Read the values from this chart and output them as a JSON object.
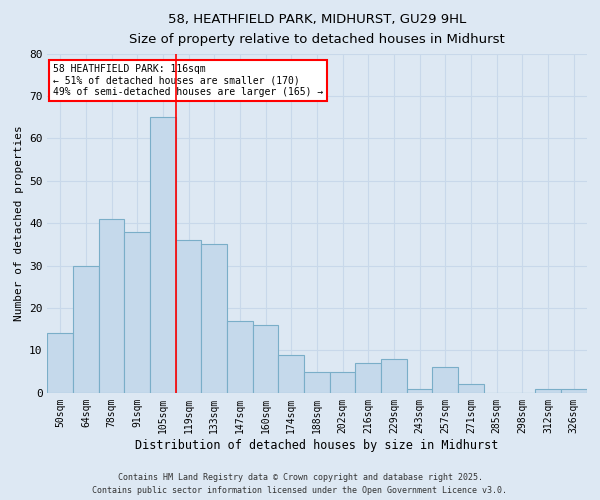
{
  "title": "58, HEATHFIELD PARK, MIDHURST, GU29 9HL",
  "subtitle": "Size of property relative to detached houses in Midhurst",
  "xlabel": "Distribution of detached houses by size in Midhurst",
  "ylabel": "Number of detached properties",
  "categories": [
    "50sqm",
    "64sqm",
    "78sqm",
    "91sqm",
    "105sqm",
    "119sqm",
    "133sqm",
    "147sqm",
    "160sqm",
    "174sqm",
    "188sqm",
    "202sqm",
    "216sqm",
    "229sqm",
    "243sqm",
    "257sqm",
    "271sqm",
    "285sqm",
    "298sqm",
    "312sqm",
    "326sqm"
  ],
  "values": [
    14,
    30,
    41,
    38,
    65,
    36,
    35,
    17,
    16,
    9,
    5,
    5,
    7,
    8,
    1,
    6,
    2,
    0,
    0,
    1,
    1
  ],
  "bar_color": "#c5d9eb",
  "bar_edge_color": "#7aaec8",
  "grid_color": "#c8d8ea",
  "background_color": "#dde8f3",
  "red_line_index": 5,
  "annotation_line1": "58 HEATHFIELD PARK: 116sqm",
  "annotation_line2": "← 51% of detached houses are smaller (170)",
  "annotation_line3": "49% of semi-detached houses are larger (165) →",
  "annotation_box_facecolor": "white",
  "annotation_box_edgecolor": "red",
  "ylim": [
    0,
    80
  ],
  "yticks": [
    0,
    10,
    20,
    30,
    40,
    50,
    60,
    70,
    80
  ],
  "footer1": "Contains HM Land Registry data © Crown copyright and database right 2025.",
  "footer2": "Contains public sector information licensed under the Open Government Licence v3.0."
}
